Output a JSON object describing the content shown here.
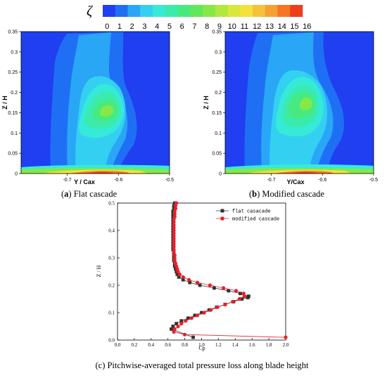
{
  "colorbar": {
    "symbol": "ζ",
    "ticks": [
      "0",
      "1",
      "2",
      "3",
      "4",
      "5",
      "6",
      "7",
      "8",
      "9",
      "10",
      "11",
      "12",
      "13",
      "14",
      "15",
      "16"
    ],
    "colors": [
      "#1f3ff0",
      "#1f6ff5",
      "#2aa6f7",
      "#34d0f2",
      "#36ead8",
      "#3aebac",
      "#47ea7f",
      "#5fe85a",
      "#86e846",
      "#b0e83d",
      "#d8e83a",
      "#f4e23a",
      "#f7c23a",
      "#f7a033",
      "#f67624",
      "#ee3d1a"
    ]
  },
  "panel_a": {
    "caption_letter": "a",
    "caption_text": " Flat cascade",
    "xlabel": "Y / Cax",
    "ylabel": "Z / H",
    "xticks": [
      "-0.7",
      "-0.6",
      "-0.5"
    ],
    "yticks": [
      "0",
      "0.05",
      "0.1",
      "0.15",
      "0.2",
      "0.25",
      "0.3",
      "0.35"
    ]
  },
  "panel_b": {
    "caption_letter": "b",
    "caption_text": " Modified cascade",
    "xlabel": "Y/Cax",
    "ylabel": "Z / H",
    "xticks": [
      "-0.7",
      "-0.6",
      "-0.5"
    ],
    "yticks": [
      "0",
      "0.05",
      "0.1",
      "0.15",
      "0.2",
      "0.25",
      "0.3",
      "0.35"
    ]
  },
  "panel_c": {
    "caption": "(c) Pitchwise-averaged total pressure loss along blade height",
    "xlabel": "Cp",
    "ylabel": "Z / H",
    "xticks": [
      "0.0",
      "0.2",
      "0.4",
      "0.6",
      "0.8",
      "1.0",
      "1.2",
      "1.4",
      "1.6",
      "1.8",
      "2.0"
    ],
    "yticks": [
      "0.0",
      "0.1",
      "0.2",
      "0.3",
      "0.4",
      "0.5"
    ]
  },
  "chart_data": [
    {
      "type": "heatmap",
      "panel": "a",
      "xlim": [
        -0.79,
        -0.5
      ],
      "ylim": [
        0,
        0.35
      ],
      "zlim": [
        0,
        16
      ],
      "peak": {
        "x": -0.625,
        "y": 0.152,
        "level": 7
      }
    },
    {
      "type": "heatmap",
      "panel": "b",
      "xlim": [
        -0.79,
        -0.5
      ],
      "ylim": [
        0,
        0.35
      ],
      "zlim": [
        0,
        16
      ],
      "peak": {
        "x": -0.617,
        "y": 0.172,
        "level": 7
      }
    },
    {
      "type": "line",
      "panel": "c",
      "xlim": [
        0,
        2.0
      ],
      "ylim": [
        0,
        0.5
      ],
      "legend_position": "top-right",
      "series": [
        {
          "name": "flat casacade",
          "color": "#333333",
          "marker": "square",
          "points": [
            [
              0.9,
              0.01
            ],
            [
              0.64,
              0.04
            ],
            [
              0.66,
              0.05
            ],
            [
              0.7,
              0.06
            ],
            [
              0.76,
              0.07
            ],
            [
              0.84,
              0.08
            ],
            [
              0.92,
              0.09
            ],
            [
              1.0,
              0.1
            ],
            [
              1.09,
              0.11
            ],
            [
              1.18,
              0.12
            ],
            [
              1.28,
              0.13
            ],
            [
              1.38,
              0.14
            ],
            [
              1.48,
              0.15
            ],
            [
              1.55,
              0.155
            ],
            [
              1.56,
              0.16
            ],
            [
              1.46,
              0.17
            ],
            [
              1.32,
              0.18
            ],
            [
              1.15,
              0.19
            ],
            [
              0.98,
              0.2
            ],
            [
              0.86,
              0.21
            ],
            [
              0.78,
              0.22
            ],
            [
              0.73,
              0.23
            ],
            [
              0.71,
              0.24
            ],
            [
              0.7,
              0.25
            ],
            [
              0.69,
              0.26
            ],
            [
              0.68,
              0.27
            ],
            [
              0.68,
              0.28
            ],
            [
              0.67,
              0.29
            ],
            [
              0.67,
              0.3
            ],
            [
              0.67,
              0.31
            ],
            [
              0.67,
              0.32
            ],
            [
              0.66,
              0.33
            ],
            [
              0.66,
              0.34
            ],
            [
              0.66,
              0.35
            ],
            [
              0.66,
              0.36
            ],
            [
              0.66,
              0.37
            ],
            [
              0.66,
              0.38
            ],
            [
              0.66,
              0.39
            ],
            [
              0.66,
              0.4
            ],
            [
              0.66,
              0.41
            ],
            [
              0.66,
              0.42
            ],
            [
              0.66,
              0.43
            ],
            [
              0.66,
              0.44
            ],
            [
              0.66,
              0.45
            ],
            [
              0.66,
              0.46
            ],
            [
              0.66,
              0.47
            ],
            [
              0.67,
              0.48
            ],
            [
              0.67,
              0.49
            ],
            [
              0.68,
              0.5
            ]
          ]
        },
        {
          "name": "modified cascade",
          "color": "#e8202a",
          "marker": "circle",
          "points": [
            [
              2.0,
              0.01
            ],
            [
              0.8,
              0.02
            ],
            [
              0.67,
              0.03
            ],
            [
              0.68,
              0.04
            ],
            [
              0.72,
              0.05
            ],
            [
              0.76,
              0.06
            ],
            [
              0.81,
              0.07
            ],
            [
              0.88,
              0.08
            ],
            [
              0.95,
              0.09
            ],
            [
              1.03,
              0.1
            ],
            [
              1.11,
              0.11
            ],
            [
              1.19,
              0.12
            ],
            [
              1.28,
              0.13
            ],
            [
              1.37,
              0.14
            ],
            [
              1.45,
              0.15
            ],
            [
              1.51,
              0.16
            ],
            [
              1.5,
              0.17
            ],
            [
              1.41,
              0.18
            ],
            [
              1.26,
              0.19
            ],
            [
              1.1,
              0.2
            ],
            [
              0.95,
              0.21
            ],
            [
              0.85,
              0.22
            ],
            [
              0.78,
              0.23
            ],
            [
              0.74,
              0.24
            ],
            [
              0.72,
              0.25
            ],
            [
              0.71,
              0.26
            ],
            [
              0.7,
              0.27
            ],
            [
              0.69,
              0.28
            ],
            [
              0.68,
              0.29
            ],
            [
              0.68,
              0.3
            ],
            [
              0.68,
              0.31
            ],
            [
              0.67,
              0.32
            ],
            [
              0.67,
              0.33
            ],
            [
              0.67,
              0.34
            ],
            [
              0.67,
              0.35
            ],
            [
              0.67,
              0.36
            ],
            [
              0.67,
              0.37
            ],
            [
              0.67,
              0.38
            ],
            [
              0.67,
              0.39
            ],
            [
              0.67,
              0.4
            ],
            [
              0.67,
              0.41
            ],
            [
              0.67,
              0.42
            ],
            [
              0.67,
              0.43
            ],
            [
              0.67,
              0.44
            ],
            [
              0.68,
              0.45
            ],
            [
              0.68,
              0.46
            ],
            [
              0.68,
              0.47
            ],
            [
              0.69,
              0.48
            ],
            [
              0.69,
              0.49
            ],
            [
              0.7,
              0.5
            ]
          ]
        }
      ]
    }
  ]
}
